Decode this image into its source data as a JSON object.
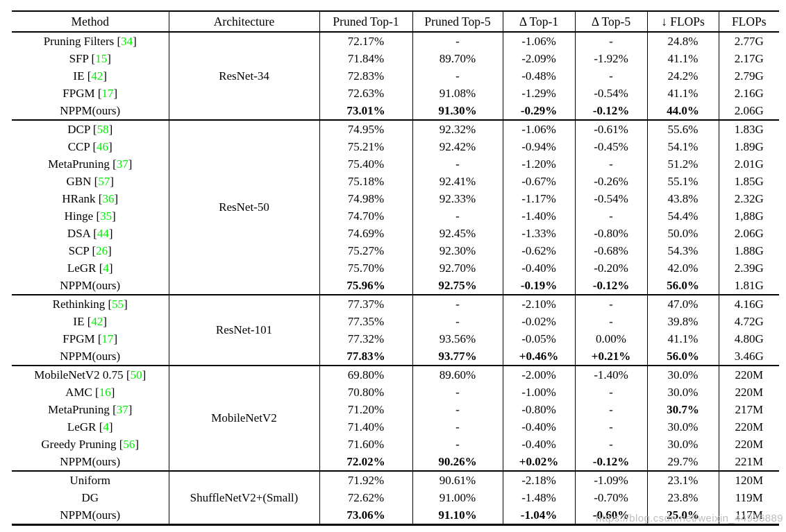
{
  "theme": {
    "citation_color": "#00ee00",
    "watermark_color": "#bdbdbd",
    "rule_color": "#000000",
    "background": "#ffffff"
  },
  "watermark": "https://blog.csdn.net/weixin_44936889",
  "table": {
    "columns": [
      "Method",
      "Architecture",
      "Pruned Top-1",
      "Pruned Top-5",
      "Δ Top-1",
      "Δ Top-5",
      "↓ FLOPs",
      "FLOPs"
    ],
    "sections": [
      {
        "architecture": "ResNet-34",
        "rows": [
          {
            "method": "Pruning Filters",
            "cite": "34",
            "values": [
              "72.17%",
              "-",
              "-1.06%",
              "-",
              "24.8%",
              "2.77G"
            ]
          },
          {
            "method": "SFP",
            "cite": "15",
            "values": [
              "71.84%",
              "89.70%",
              "-2.09%",
              "-1.92%",
              "41.1%",
              "2.17G"
            ]
          },
          {
            "method": "IE",
            "cite": "42",
            "values": [
              "72.83%",
              "-",
              "-0.48%",
              "-",
              "24.2%",
              "2.79G"
            ]
          },
          {
            "method": "FPGM",
            "cite": "17",
            "values": [
              "72.63%",
              "91.08%",
              "-1.29%",
              "-0.54%",
              "41.1%",
              "2.16G"
            ]
          },
          {
            "method": "NPPM(ours)",
            "values": [
              "73.01%",
              "91.30%",
              "-0.29%",
              "-0.12%",
              "44.0%",
              "2.06G"
            ],
            "bold": [
              true,
              true,
              true,
              true,
              true,
              false
            ]
          }
        ]
      },
      {
        "architecture": "ResNet-50",
        "rows": [
          {
            "method": "DCP",
            "cite": "58",
            "values": [
              "74.95%",
              "92.32%",
              "-1.06%",
              "-0.61%",
              "55.6%",
              "1.83G"
            ]
          },
          {
            "method": "CCP",
            "cite": "46",
            "values": [
              "75.21%",
              "92.42%",
              "-0.94%",
              "-0.45%",
              "54.1%",
              "1.89G"
            ]
          },
          {
            "method": "MetaPruning",
            "cite": "37",
            "values": [
              "75.40%",
              "-",
              "-1.20%",
              "-",
              "51.2%",
              "2.01G"
            ]
          },
          {
            "method": "GBN",
            "cite": "57",
            "values": [
              "75.18%",
              "92.41%",
              "-0.67%",
              "-0.26%",
              "55.1%",
              "1.85G"
            ]
          },
          {
            "method": "HRank",
            "cite": "36",
            "values": [
              "74.98%",
              "92.33%",
              "-1.17%",
              "-0.54%",
              "43.8%",
              "2.32G"
            ]
          },
          {
            "method": "Hinge",
            "cite": "35",
            "values": [
              "74.70%",
              "-",
              "-1.40%",
              "-",
              "54.4%",
              "1,88G"
            ]
          },
          {
            "method": "DSA",
            "cite": "44",
            "values": [
              "74.69%",
              "92.45%",
              "-1.33%",
              "-0.80%",
              "50.0%",
              "2.06G"
            ]
          },
          {
            "method": "SCP",
            "cite": "26",
            "values": [
              "75.27%",
              "92.30%",
              "-0.62%",
              "-0.68%",
              "54.3%",
              "1.88G"
            ]
          },
          {
            "method": "LeGR",
            "cite": "4",
            "values": [
              "75.70%",
              "92.70%",
              "-0.40%",
              "-0.20%",
              "42.0%",
              "2.39G"
            ]
          },
          {
            "method": "NPPM(ours)",
            "values": [
              "75.96%",
              "92.75%",
              "-0.19%",
              "-0.12%",
              "56.0%",
              "1.81G"
            ],
            "bold": [
              true,
              true,
              true,
              true,
              true,
              false
            ]
          }
        ]
      },
      {
        "architecture": "ResNet-101",
        "rows": [
          {
            "method": "Rethinking",
            "cite": "55",
            "values": [
              "77.37%",
              "-",
              "-2.10%",
              "-",
              "47.0%",
              "4.16G"
            ]
          },
          {
            "method": "IE",
            "cite": "42",
            "values": [
              "77.35%",
              "-",
              "-0.02%",
              "-",
              "39.8%",
              "4.72G"
            ]
          },
          {
            "method": "FPGM",
            "cite": "17",
            "values": [
              "77.32%",
              "93.56%",
              "-0.05%",
              "0.00%",
              "41.1%",
              "4.80G"
            ]
          },
          {
            "method": "NPPM(ours)",
            "values": [
              "77.83%",
              "93.77%",
              "+0.46%",
              "+0.21%",
              "56.0%",
              "3.46G"
            ],
            "bold": [
              true,
              true,
              true,
              true,
              true,
              false
            ]
          }
        ]
      },
      {
        "architecture": "MobileNetV2",
        "rows": [
          {
            "method": "MobileNetV2 0.75",
            "cite": "50",
            "values": [
              "69.80%",
              "89.60%",
              "-2.00%",
              "-1.40%",
              "30.0%",
              "220M"
            ]
          },
          {
            "method": "AMC",
            "cite": "16",
            "values": [
              "70.80%",
              "-",
              "-1.00%",
              "-",
              "30.0%",
              "220M"
            ]
          },
          {
            "method": "MetaPruning",
            "cite": "37",
            "values": [
              "71.20%",
              "-",
              "-0.80%",
              "-",
              "30.7%",
              "217M"
            ],
            "bold": [
              false,
              false,
              false,
              false,
              true,
              false
            ]
          },
          {
            "method": "LeGR",
            "cite": "4",
            "values": [
              "71.40%",
              "-",
              "-0.40%",
              "-",
              "30.0%",
              "220M"
            ]
          },
          {
            "method": "Greedy Pruning",
            "cite": "56",
            "values": [
              "71.60%",
              "-",
              "-0.40%",
              "-",
              "30.0%",
              "220M"
            ]
          },
          {
            "method": "NPPM(ours)",
            "values": [
              "72.02%",
              "90.26%",
              "+0.02%",
              "-0.12%",
              "29.7%",
              "221M"
            ],
            "bold": [
              true,
              true,
              true,
              true,
              false,
              false
            ]
          }
        ]
      },
      {
        "architecture": "ShuffleNetV2+(Small)",
        "rows": [
          {
            "method": "Uniform",
            "values": [
              "71.92%",
              "90.61%",
              "-2.18%",
              "-1.09%",
              "23.1%",
              "120M"
            ]
          },
          {
            "method": "DG",
            "values": [
              "72.62%",
              "91.00%",
              "-1.48%",
              "-0.70%",
              "23.8%",
              "119M"
            ]
          },
          {
            "method": "NPPM(ours)",
            "values": [
              "73.06%",
              "91.10%",
              "-1.04%",
              "-0.60%",
              "25.0%",
              "117M"
            ],
            "bold": [
              true,
              true,
              true,
              true,
              true,
              false
            ]
          }
        ]
      }
    ]
  }
}
